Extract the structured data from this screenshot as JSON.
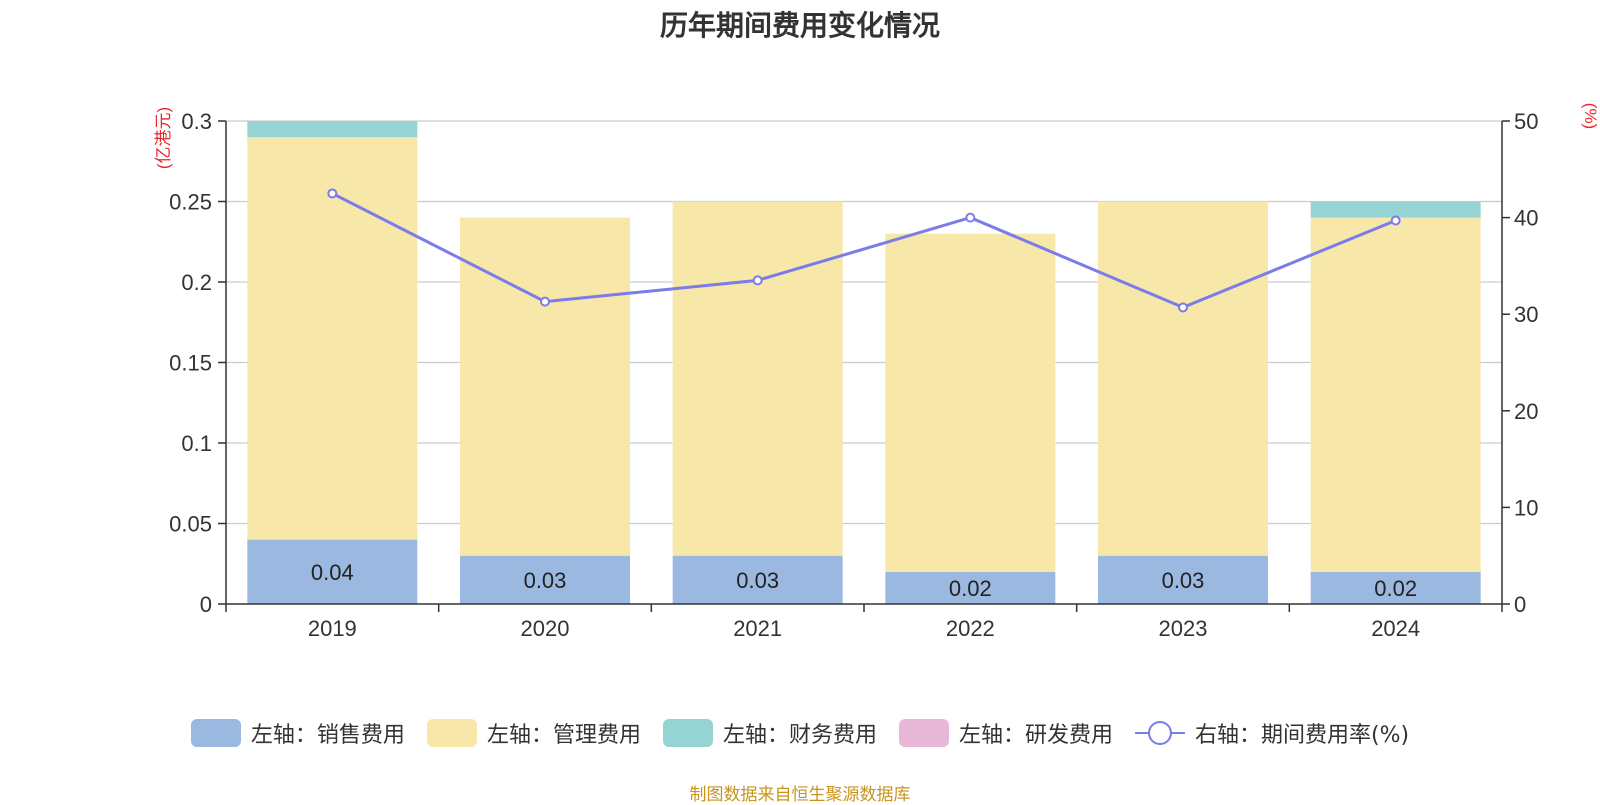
{
  "chart_data": {
    "type": "bar",
    "title": "历年期间费用变化情况",
    "categories": [
      "2019",
      "2020",
      "2021",
      "2022",
      "2023",
      "2024"
    ],
    "y_left": {
      "unit_label": "(亿港元)",
      "ylim": [
        0,
        0.3
      ],
      "ticks": [
        "0",
        "0.05",
        "0.1",
        "0.15",
        "0.2",
        "0.25",
        "0.3"
      ],
      "tick_values": [
        0,
        0.05,
        0.1,
        0.15,
        0.2,
        0.25,
        0.3
      ]
    },
    "y_right": {
      "unit_label": "(%)",
      "ylim": [
        0,
        50
      ],
      "ticks": [
        "0",
        "10",
        "20",
        "30",
        "40",
        "50"
      ],
      "tick_values": [
        0,
        10,
        20,
        30,
        40,
        50
      ]
    },
    "stacked": true,
    "grid": true,
    "legend_position": "bottom",
    "series": [
      {
        "name": "左轴：销售费用",
        "axis": "left",
        "kind": "bar",
        "color": "#9bb8e1",
        "values": [
          0.04,
          0.03,
          0.03,
          0.02,
          0.03,
          0.02
        ],
        "labels": [
          "0.04",
          "0.03",
          "0.03",
          "0.02",
          "0.03",
          "0.02"
        ]
      },
      {
        "name": "左轴：管理费用",
        "axis": "left",
        "kind": "bar",
        "color": "#f7e7a9",
        "values": [
          0.25,
          0.21,
          0.22,
          0.21,
          0.22,
          0.22
        ]
      },
      {
        "name": "左轴：财务费用",
        "axis": "left",
        "kind": "bar",
        "color": "#96d4d4",
        "values": [
          0.01,
          0,
          0,
          0,
          0,
          0.01
        ]
      },
      {
        "name": "左轴：研发费用",
        "axis": "left",
        "kind": "bar",
        "color": "#e8b8d9",
        "values": [
          0,
          0,
          0,
          0,
          0,
          0
        ]
      },
      {
        "name": "右轴：期间费用率(%)",
        "axis": "right",
        "kind": "line",
        "color": "#7b7bea",
        "values": [
          42.5,
          31.3,
          33.5,
          40.0,
          30.7,
          39.7
        ]
      }
    ],
    "source": "制图数据来自恒生聚源数据库"
  }
}
